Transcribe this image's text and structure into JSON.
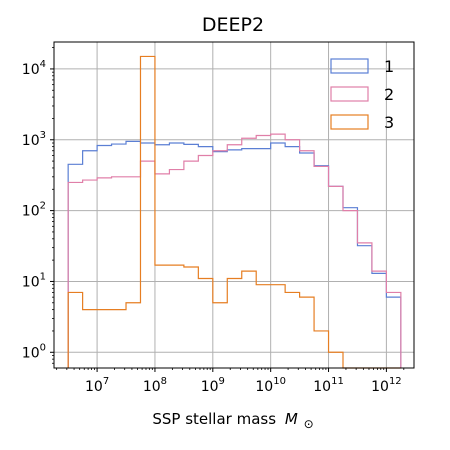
{
  "chart_data": {
    "type": "histogram",
    "title": "DEEP2",
    "xlabel": "SSP stellar mass",
    "xlabel_symbol": "M",
    "xlabel_subscript": "⊙",
    "xscale": "log",
    "yscale": "log",
    "xlim": [
      1800000.0,
      3000000000000.0
    ],
    "ylim": [
      0.6,
      24000
    ],
    "grid": true,
    "legend_position": "top-right",
    "x_ticks": [
      {
        "value": 10000000.0,
        "base": "10",
        "exp": "7"
      },
      {
        "value": 100000000.0,
        "base": "10",
        "exp": "8"
      },
      {
        "value": 1000000000.0,
        "base": "10",
        "exp": "9"
      },
      {
        "value": 10000000000.0,
        "base": "10",
        "exp": "10"
      },
      {
        "value": 100000000000.0,
        "base": "10",
        "exp": "11"
      },
      {
        "value": 1000000000000.0,
        "base": "10",
        "exp": "12"
      }
    ],
    "y_ticks": [
      {
        "value": 1,
        "base": "10",
        "exp": "0"
      },
      {
        "value": 10,
        "base": "10",
        "exp": "1"
      },
      {
        "value": 100,
        "base": "10",
        "exp": "2"
      },
      {
        "value": 1000,
        "base": "10",
        "exp": "3"
      },
      {
        "value": 10000,
        "base": "10",
        "exp": "4"
      }
    ],
    "bin_edges_log10": [
      6.5,
      6.75,
      7.0,
      7.25,
      7.5,
      7.75,
      8.0,
      8.25,
      8.5,
      8.75,
      9.0,
      9.25,
      9.5,
      9.75,
      10.0,
      10.25,
      10.5,
      10.75,
      11.0,
      11.25,
      11.5,
      11.75,
      12.0,
      12.25
    ],
    "series": [
      {
        "name": "1",
        "color": "#5b7fd4",
        "values": [
          450,
          700,
          830,
          870,
          950,
          900,
          850,
          900,
          860,
          800,
          680,
          720,
          750,
          750,
          900,
          800,
          650,
          430,
          220,
          110,
          32,
          13,
          6
        ]
      },
      {
        "name": "2",
        "color": "#e07fa8",
        "values": [
          250,
          270,
          290,
          300,
          300,
          500,
          330,
          380,
          500,
          600,
          700,
          850,
          1050,
          1150,
          1200,
          1000,
          700,
          420,
          220,
          100,
          35,
          14,
          7
        ]
      },
      {
        "name": "3",
        "color": "#e67e22",
        "values": [
          7,
          4,
          4,
          4,
          5,
          15000,
          17,
          17,
          16,
          11,
          5,
          11,
          14,
          9,
          9,
          7,
          6,
          2,
          1,
          0,
          0,
          0,
          0
        ]
      }
    ]
  }
}
